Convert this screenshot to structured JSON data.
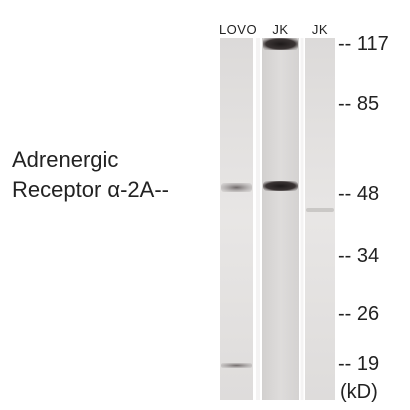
{
  "lanes": [
    {
      "label": "LOVO"
    },
    {
      "label": "JK"
    },
    {
      "label": "JK"
    }
  ],
  "protein_label": {
    "line1": "Adrenergic",
    "line2": "Receptor α-2A--"
  },
  "markers": [
    {
      "label": "-- 117"
    },
    {
      "label": "-- 85"
    },
    {
      "label": "-- 48"
    },
    {
      "label": "-- 34"
    },
    {
      "label": "-- 26"
    },
    {
      "label": "-- 19"
    }
  ],
  "unit_label": "(kD)",
  "colors": {
    "lane_background": "#e6e4e3",
    "band_dark": "#2a2626",
    "text": "#222222"
  }
}
